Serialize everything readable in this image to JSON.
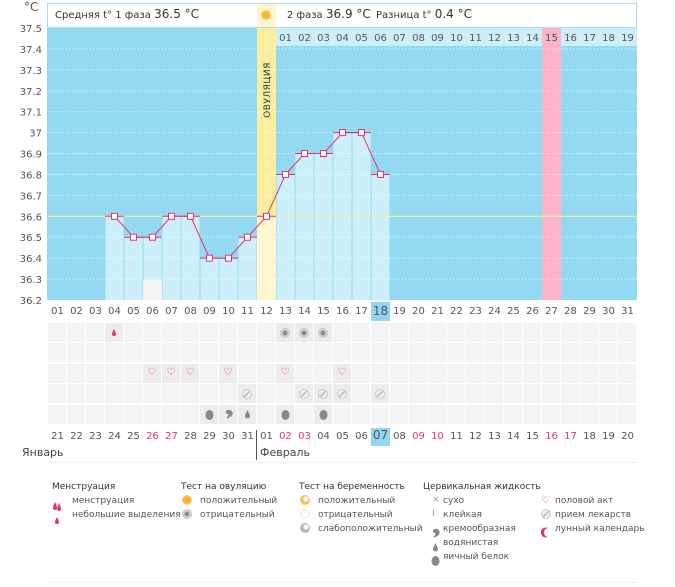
{
  "header": {
    "unit": "°C",
    "phase1_label": "Средняя t° 1 фаза",
    "phase1_value": "36.5 °C",
    "phase2_label": "2 фаза",
    "phase2_value": "36.9 °C",
    "diff_label": "Разница t°",
    "diff_value": "0.4 °C",
    "ovulation_label": "ОВУЛЯЦИЯ"
  },
  "colors": {
    "chart_bg": "#93d9f2",
    "bar": "#cdeefb",
    "ovulation": "#fbee9e",
    "ovulation_light": "#fdf6cf",
    "period_expected": "#fdb4c7",
    "line": "#e8336a",
    "coverline": "#f4ef9a",
    "highlight": "#8ed6f2",
    "red_date": "#e8336a"
  },
  "top_day_numbers": [
    "01",
    "02",
    "03",
    "04",
    "05",
    "06",
    "07",
    "08",
    "09",
    "10",
    "11",
    "12",
    "13",
    "14",
    "15",
    "16",
    "17",
    "18",
    "19"
  ],
  "top_day_highlight": "15",
  "chart_data": {
    "type": "line",
    "title": "",
    "xlabel": "",
    "ylabel": "°C",
    "ylim": [
      36.2,
      37.5
    ],
    "yticks": [
      "37.5",
      "37.4",
      "37.3",
      "37.2",
      "37.1",
      "37",
      "36.9",
      "36.8",
      "36.7",
      "36.6",
      "36.5",
      "36.4",
      "36.3",
      "36.2"
    ],
    "categories": [
      "01",
      "02",
      "03",
      "04",
      "05",
      "06",
      "07",
      "08",
      "09",
      "10",
      "11",
      "12",
      "13",
      "14",
      "15",
      "16",
      "17",
      "18",
      "19",
      "20",
      "21",
      "22",
      "23",
      "24",
      "25",
      "26",
      "27",
      "28",
      "29",
      "30",
      "31"
    ],
    "series": [
      {
        "name": "temperature",
        "x": [
          4,
          5,
          6,
          7,
          8,
          9,
          10,
          11,
          12,
          13,
          14,
          15,
          16,
          17,
          18
        ],
        "values": [
          36.6,
          36.5,
          36.5,
          36.6,
          36.6,
          36.4,
          36.4,
          36.5,
          36.6,
          36.8,
          36.9,
          36.9,
          37.0,
          37.0,
          36.8
        ]
      }
    ],
    "coverline": 36.6,
    "ovulation_day": 12,
    "expected_period_day": 27,
    "current_day": 18,
    "moon_day": 6,
    "grid": true
  },
  "cycle_days_current": "18",
  "calendar_dates": [
    "21",
    "22",
    "23",
    "24",
    "25",
    "26",
    "27",
    "28",
    "29",
    "30",
    "31",
    "01",
    "02",
    "03",
    "04",
    "05",
    "06",
    "07",
    "08",
    "09",
    "10",
    "11",
    "12",
    "13",
    "14",
    "15",
    "16",
    "17",
    "18",
    "19",
    "20"
  ],
  "calendar_red_indices": [
    5,
    6,
    12,
    13,
    19,
    20,
    26,
    27
  ],
  "calendar_today": "07",
  "months": {
    "left": "Январь",
    "right": "Февраль"
  },
  "icon_rows": [
    [
      {
        "day": 4,
        "icon": "spotting-icon"
      },
      {
        "day": 13,
        "icon": "ovulation-test-negative-icon"
      },
      {
        "day": 14,
        "icon": "ovulation-test-negative-icon"
      },
      {
        "day": 15,
        "icon": "ovulation-test-negative-icon"
      }
    ],
    [],
    [
      {
        "day": 6,
        "icon": "heart-icon"
      },
      {
        "day": 7,
        "icon": "heart-icon"
      },
      {
        "day": 8,
        "icon": "heart-icon"
      },
      {
        "day": 10,
        "icon": "heart-icon"
      },
      {
        "day": 13,
        "icon": "heart-icon"
      },
      {
        "day": 16,
        "icon": "heart-icon"
      }
    ],
    [
      {
        "day": 11,
        "icon": "pill-icon"
      },
      {
        "day": 14,
        "icon": "pill-icon"
      },
      {
        "day": 15,
        "icon": "pill-icon"
      },
      {
        "day": 16,
        "icon": "pill-icon"
      },
      {
        "day": 18,
        "icon": "pill-icon"
      }
    ],
    [
      {
        "day": 9,
        "icon": "egg-white-icon"
      },
      {
        "day": 10,
        "icon": "creamy-icon"
      },
      {
        "day": 11,
        "icon": "watery-icon"
      },
      {
        "day": 13,
        "icon": "egg-white-icon"
      },
      {
        "day": 15,
        "icon": "egg-white-icon"
      }
    ]
  ],
  "legend": {
    "menstruation": {
      "title": "Менструация",
      "items": [
        "менструация",
        "небольшие выделения"
      ]
    },
    "ovulation_test": {
      "title": "Тест на овуляцию",
      "items": [
        "положительный",
        "отрицательный"
      ]
    },
    "pregnancy_test": {
      "title": "Тест на беременность",
      "items": [
        "положительный",
        "отрицательный",
        "слабоположительный"
      ]
    },
    "cervical": {
      "title": "Цервикальная жидкость",
      "items": [
        "сухо",
        "клейкая",
        "кремообразная",
        "водянистая",
        "яичный белок"
      ]
    },
    "other": {
      "items": [
        "половой акт",
        "прием лекарств",
        "лунный календарь"
      ]
    }
  }
}
